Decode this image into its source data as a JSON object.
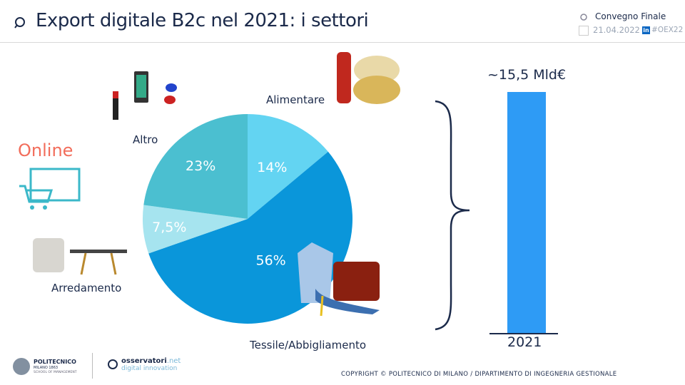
{
  "header": {
    "title": "Export digitale B2c nel 2021: i settori",
    "event": "Convegno Finale",
    "date": "21.04.2022",
    "hashtag": "#OEX22",
    "linkedin": "in"
  },
  "side_label": "Online",
  "bar": {
    "value_label": "~15,5 Mld€",
    "year": "2021",
    "color": "#2e9bf5"
  },
  "chart_data": {
    "type": "pie",
    "title": "Export digitale B2c nel 2021: i settori",
    "slices": [
      {
        "name": "Alimentare",
        "value": 14,
        "label": "14%",
        "color": "#63d4f2"
      },
      {
        "name": "Tessile/Abbigliamento",
        "value": 56,
        "label": "56%",
        "color": "#0a96da"
      },
      {
        "name": "Arredamento",
        "value": 7.5,
        "label": "7,5%",
        "color": "#a6e4ef"
      },
      {
        "name": "Altro",
        "value": 23,
        "label": "23%",
        "color": "#4bbfd0"
      }
    ]
  },
  "footer": {
    "copyright": "COPYRIGHT © POLITECNICO  DI MILANO / DIPARTIMENTO  DI INGEGNERIA GESTIONALE",
    "polimi": "POLITECNICO",
    "polimi_sub": "MILANO 1863",
    "polimi_school": "SCHOOL OF MANAGEMENT",
    "oss1": "osservatori",
    "oss2": ".net",
    "oss3": "digital innovation"
  }
}
